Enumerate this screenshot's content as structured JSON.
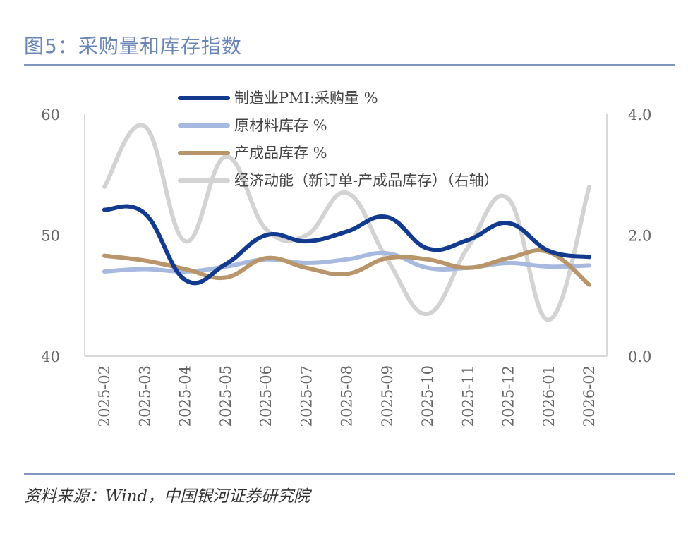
{
  "title": "图5：采购量和库存指数",
  "source": "资料来源：Wind，中国银河证券研究院",
  "chart_data": {
    "type": "line",
    "categories": [
      "2025-02",
      "2025-03",
      "2025-04",
      "2025-05",
      "2025-06",
      "2025-07",
      "2025-08",
      "2025-09",
      "2025-10",
      "2025-11",
      "2025-12",
      "2026-01",
      "2026-02"
    ],
    "left_axis": {
      "min": 40,
      "max": 60,
      "ticks": [
        "60",
        "50",
        "40"
      ],
      "tick_values": [
        60,
        50,
        40
      ]
    },
    "right_axis": {
      "min": 0,
      "max": 4,
      "ticks": [
        "4.0",
        "2.0",
        "0.0"
      ],
      "tick_values": [
        4,
        2,
        0
      ]
    },
    "legend_position": "top",
    "series": [
      {
        "name": "制造业PMI:采购量 %",
        "axis": "left",
        "color": "#123a8f",
        "values": [
          52.1,
          51.8,
          46.3,
          47.6,
          50.0,
          49.5,
          50.3,
          51.5,
          48.9,
          49.6,
          51.0,
          48.7,
          48.2
        ]
      },
      {
        "name": "原材料库存 %",
        "axis": "left",
        "color": "#a8b9e0",
        "values": [
          47.0,
          47.2,
          47.0,
          47.4,
          48.0,
          47.7,
          48.0,
          48.5,
          47.3,
          47.3,
          47.7,
          47.4,
          47.5
        ]
      },
      {
        "name": "产成品库存 %",
        "axis": "left",
        "color": "#b8956a",
        "values": [
          48.3,
          47.9,
          47.2,
          46.5,
          48.1,
          47.3,
          46.8,
          48.1,
          48.0,
          47.3,
          48.1,
          48.6,
          45.9
        ]
      },
      {
        "name": "经济动能（新订单-产成品库存）（右轴）",
        "axis": "right",
        "color": "#d3d3d3",
        "values": [
          2.8,
          3.8,
          1.9,
          3.3,
          2.1,
          2.0,
          2.7,
          1.6,
          0.7,
          1.8,
          2.6,
          0.6,
          2.8
        ]
      }
    ]
  }
}
